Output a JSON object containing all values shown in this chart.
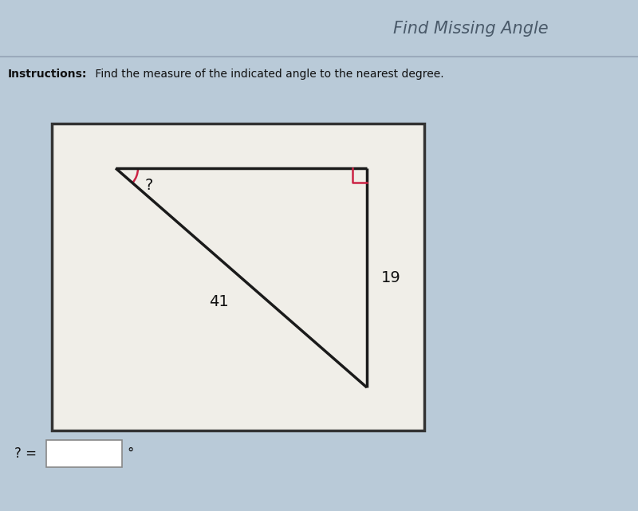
{
  "title": "Find Missing Angle",
  "instruction_bold": "Instructions:",
  "instruction_text": " Find the measure of the indicated angle to the nearest degree.",
  "bg_color": "#b9cad8",
  "triangle_color": "#1a1a1a",
  "right_angle_color": "#cc2244",
  "angle_arc_color": "#cc2244",
  "label_41": "41",
  "label_19": "19",
  "label_question": "?",
  "answer_label": "? =",
  "degree_symbol": "°",
  "header_line_color": "#9aaabb",
  "box_border_color": "#333333"
}
